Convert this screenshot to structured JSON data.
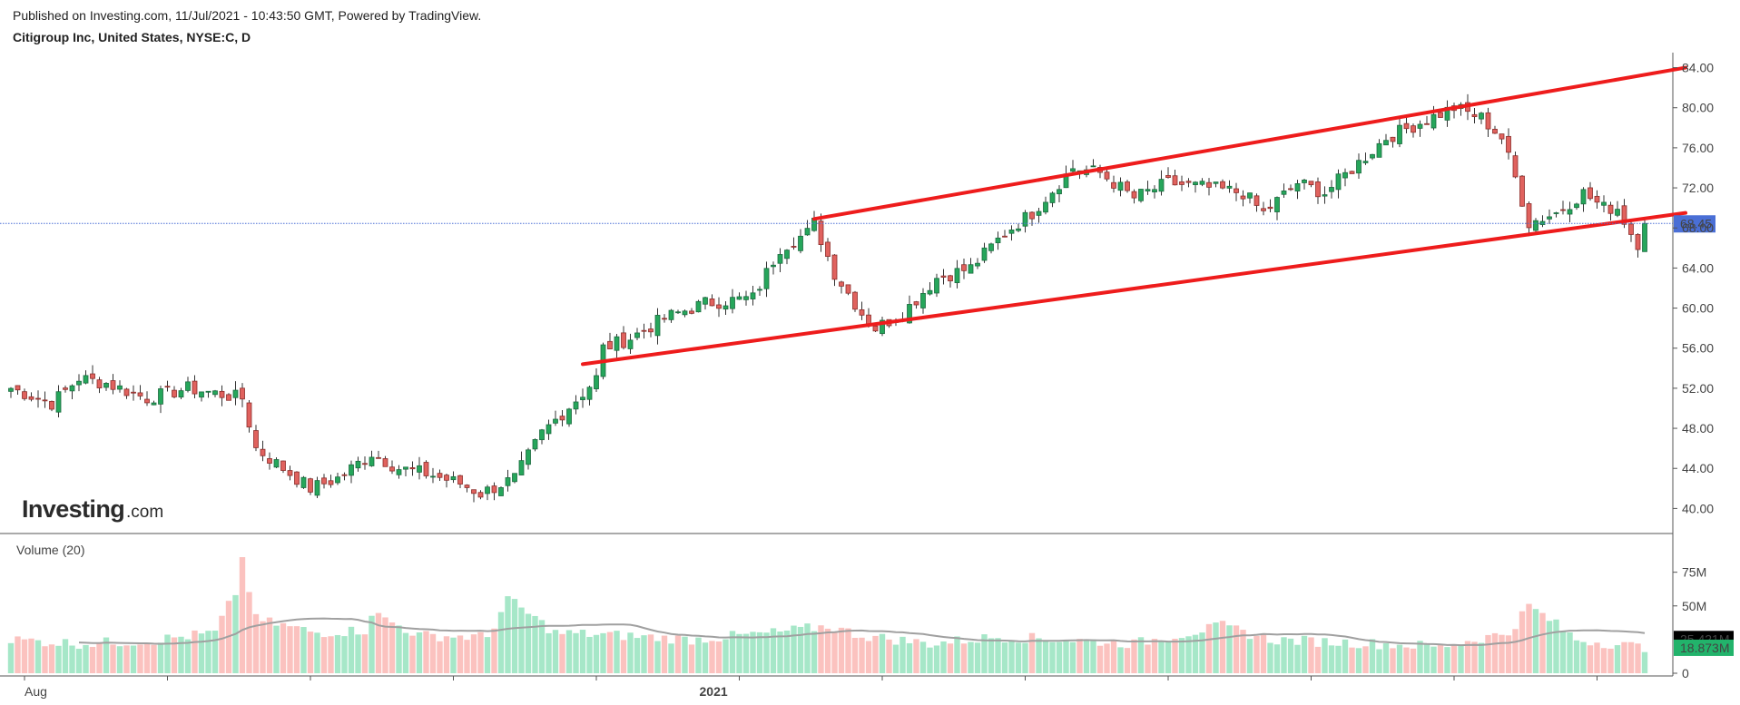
{
  "header": {
    "published": "Published on Investing.com, 11/Jul/2021 - 10:43:50 GMT, Powered by TradingView.",
    "symbol": "Citigroup Inc, United States, NYSE:C, D"
  },
  "logo": {
    "brand": "Investing",
    "suffix": ".com"
  },
  "volume_title": "Volume (20)",
  "chart_data": {
    "type": "candlestick",
    "title": "Citigroup Inc, United States, NYSE:C, D",
    "price_ylim": [
      37.5,
      85.5
    ],
    "price_ticks": [
      "84.00",
      "80.00",
      "76.00",
      "72.00",
      "68.00",
      "64.00",
      "60.00",
      "56.00",
      "52.00",
      "48.00",
      "44.00",
      "40.00"
    ],
    "last_price": "68.45",
    "volume_ylim": [
      0,
      97
    ],
    "volume_ticks": [
      {
        "label": "75M",
        "value": 75
      },
      {
        "label": "50M",
        "value": 50
      },
      {
        "label": "0",
        "value": 0
      }
    ],
    "volume_badges": [
      {
        "label": "25.421M",
        "value": 25.4,
        "color": "#000000"
      },
      {
        "label": "18.873M",
        "value": 18.9,
        "color": "#22b36b"
      }
    ],
    "x_labels": [
      {
        "label": "Aug",
        "index": 2
      },
      {
        "label": "2021",
        "index": 103
      }
    ],
    "anchors": [
      {
        "i": 0,
        "p": 52
      },
      {
        "i": 6,
        "p": 50.5
      },
      {
        "i": 10,
        "p": 53
      },
      {
        "i": 14,
        "p": 52.5
      },
      {
        "i": 20,
        "p": 51
      },
      {
        "i": 26,
        "p": 52
      },
      {
        "i": 34,
        "p": 51
      },
      {
        "i": 36,
        "p": 46
      },
      {
        "i": 41,
        "p": 43.5
      },
      {
        "i": 44,
        "p": 42
      },
      {
        "i": 48,
        "p": 43
      },
      {
        "i": 53,
        "p": 45.5
      },
      {
        "i": 57,
        "p": 44
      },
      {
        "i": 61,
        "p": 43.5
      },
      {
        "i": 66,
        "p": 42.5
      },
      {
        "i": 69,
        "p": 41.5
      },
      {
        "i": 74,
        "p": 43
      },
      {
        "i": 78,
        "p": 47.5
      },
      {
        "i": 84,
        "p": 51.5
      },
      {
        "i": 86,
        "p": 53
      },
      {
        "i": 87,
        "p": 56
      },
      {
        "i": 91,
        "p": 57
      },
      {
        "i": 96,
        "p": 59
      },
      {
        "i": 102,
        "p": 60.5
      },
      {
        "i": 109,
        "p": 61
      },
      {
        "i": 113,
        "p": 66
      },
      {
        "i": 117,
        "p": 67.5
      },
      {
        "i": 118,
        "p": 68.5
      },
      {
        "i": 121,
        "p": 63.5
      },
      {
        "i": 125,
        "p": 59.5
      },
      {
        "i": 127,
        "p": 58
      },
      {
        "i": 131,
        "p": 59.5
      },
      {
        "i": 136,
        "p": 63
      },
      {
        "i": 141,
        "p": 64
      },
      {
        "i": 146,
        "p": 67.5
      },
      {
        "i": 150,
        "p": 69.5
      },
      {
        "i": 156,
        "p": 74
      },
      {
        "i": 160,
        "p": 73.5
      },
      {
        "i": 165,
        "p": 71
      },
      {
        "i": 170,
        "p": 72.5
      },
      {
        "i": 176,
        "p": 72
      },
      {
        "i": 181,
        "p": 71.5
      },
      {
        "i": 184,
        "p": 69.5
      },
      {
        "i": 189,
        "p": 72.5
      },
      {
        "i": 193,
        "p": 71.5
      },
      {
        "i": 198,
        "p": 74.5
      },
      {
        "i": 202,
        "p": 77
      },
      {
        "i": 207,
        "p": 78.5
      },
      {
        "i": 212,
        "p": 80
      },
      {
        "i": 216,
        "p": 79
      },
      {
        "i": 219,
        "p": 77
      },
      {
        "i": 221,
        "p": 73
      },
      {
        "i": 223,
        "p": 68.5
      },
      {
        "i": 227,
        "p": 69.5
      },
      {
        "i": 231,
        "p": 71.5
      },
      {
        "i": 234,
        "p": 70
      },
      {
        "i": 236,
        "p": 70
      },
      {
        "i": 238,
        "p": 67.5
      },
      {
        "i": 239,
        "p": 66.5
      },
      {
        "i": 240,
        "p": 68.45
      }
    ],
    "volume_anchors": [
      {
        "i": 0,
        "v": 25
      },
      {
        "i": 10,
        "v": 22
      },
      {
        "i": 20,
        "v": 24
      },
      {
        "i": 30,
        "v": 30
      },
      {
        "i": 33,
        "v": 60
      },
      {
        "i": 34,
        "v": 85
      },
      {
        "i": 36,
        "v": 40
      },
      {
        "i": 45,
        "v": 30
      },
      {
        "i": 52,
        "v": 32
      },
      {
        "i": 53,
        "v": 45
      },
      {
        "i": 60,
        "v": 28
      },
      {
        "i": 70,
        "v": 27
      },
      {
        "i": 73,
        "v": 55
      },
      {
        "i": 80,
        "v": 30
      },
      {
        "i": 90,
        "v": 28
      },
      {
        "i": 100,
        "v": 25
      },
      {
        "i": 112,
        "v": 30
      },
      {
        "i": 120,
        "v": 35
      },
      {
        "i": 125,
        "v": 28
      },
      {
        "i": 135,
        "v": 22
      },
      {
        "i": 145,
        "v": 27
      },
      {
        "i": 155,
        "v": 25
      },
      {
        "i": 165,
        "v": 22
      },
      {
        "i": 178,
        "v": 35
      },
      {
        "i": 185,
        "v": 25
      },
      {
        "i": 200,
        "v": 22
      },
      {
        "i": 210,
        "v": 20
      },
      {
        "i": 220,
        "v": 30
      },
      {
        "i": 223,
        "v": 50
      },
      {
        "i": 226,
        "v": 40
      },
      {
        "i": 230,
        "v": 25
      },
      {
        "i": 240,
        "v": 19
      }
    ],
    "trendlines": [
      {
        "name": "upper-channel",
        "from": {
          "i": 118,
          "p": 68.9
        },
        "to": {
          "i": 246,
          "p": 84.0
        }
      },
      {
        "name": "lower-channel",
        "from": {
          "i": 84,
          "p": 54.4
        },
        "to": {
          "i": 246,
          "p": 69.5
        }
      }
    ],
    "colors": {
      "up_body": "#26a65b",
      "up_border": "#1b6b3f",
      "down_body": "#e0625e",
      "down_border": "#8b2d2a",
      "up_volume": "#a6e7c8",
      "down_volume": "#fbc2bf",
      "volume_ma": "#a0a0a0",
      "trendline": "#ee1c1c",
      "last_price_line": "#4a6fd6",
      "last_price_badge": "#4a6fd6"
    }
  }
}
